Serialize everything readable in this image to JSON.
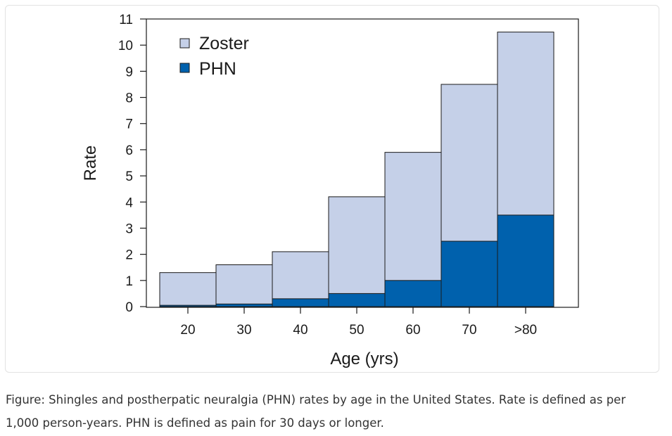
{
  "chart_data": {
    "type": "bar",
    "title": "",
    "xlabel": "Age (yrs)",
    "ylabel": "Rate",
    "categories": [
      "20",
      "30",
      "40",
      "50",
      "60",
      "70",
      ">80"
    ],
    "ylim": [
      0,
      11
    ],
    "yticks": [
      0,
      1,
      2,
      3,
      4,
      5,
      6,
      7,
      8,
      9,
      10,
      11
    ],
    "stacked": false,
    "overlapping": true,
    "series": [
      {
        "name": "Zoster",
        "values": [
          1.3,
          1.6,
          2.1,
          4.2,
          5.9,
          8.5,
          10.5
        ],
        "color": "#c5d0e8"
      },
      {
        "name": "PHN",
        "values": [
          0.05,
          0.1,
          0.3,
          0.5,
          1.0,
          2.5,
          3.5
        ],
        "color": "#0061ad"
      }
    ],
    "legend": {
      "position": "top-left",
      "entries": [
        "Zoster",
        "PHN"
      ]
    },
    "grid": false
  },
  "caption": "Figure: Shingles and postherpatic neuralgia (PHN) rates by age in the United States. Rate is defined as per 1,000 person-years. PHN is defined as pain for 30 days or longer."
}
